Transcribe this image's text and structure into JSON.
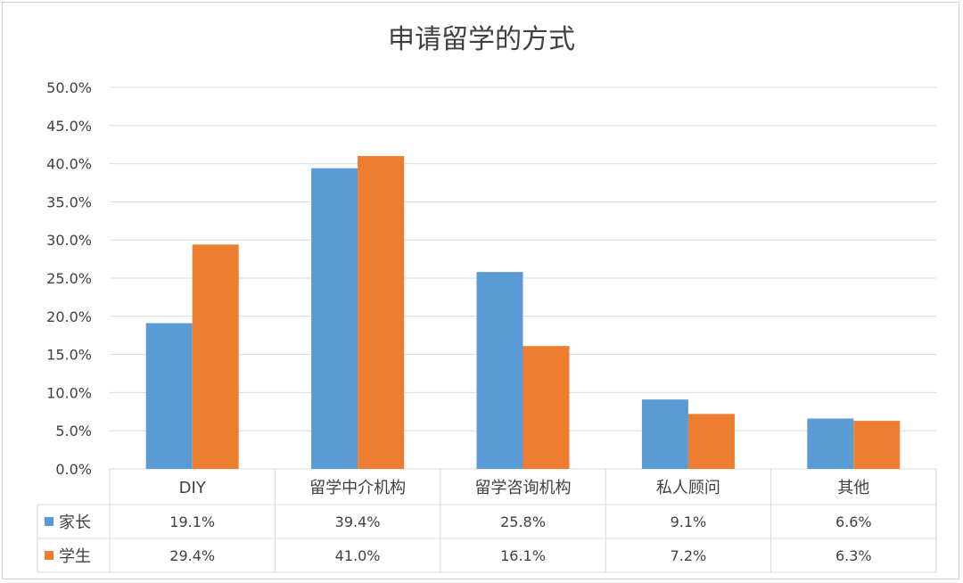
{
  "chart_data": {
    "type": "bar",
    "title": "申请留学的方式",
    "categories": [
      "DIY",
      "留学中介机构",
      "留学咨询机构",
      "私人顾问",
      "其他"
    ],
    "series": [
      {
        "name": "家长",
        "values": [
          19.1,
          39.4,
          25.8,
          9.1,
          6.6
        ],
        "labels": [
          "19.1%",
          "39.4%",
          "25.8%",
          "9.1%",
          "6.6%"
        ],
        "color": "#5b9bd5"
      },
      {
        "name": "学生",
        "values": [
          29.4,
          41.0,
          16.1,
          7.2,
          6.3
        ],
        "labels": [
          "29.4%",
          "41.0%",
          "16.1%",
          "7.2%",
          "6.3%"
        ],
        "color": "#ed7d31"
      }
    ],
    "ylim": [
      0,
      50
    ],
    "yticks": [
      0,
      5,
      10,
      15,
      20,
      25,
      30,
      35,
      40,
      45,
      50
    ],
    "ytick_labels": [
      "0.0%",
      "5.0%",
      "10.0%",
      "15.0%",
      "20.0%",
      "25.0%",
      "30.0%",
      "35.0%",
      "40.0%",
      "45.0%",
      "50.0%"
    ],
    "grid": true,
    "legend": "data-table",
    "gridline_color": "#d9d9d9",
    "axis_text_color": "#404040"
  }
}
